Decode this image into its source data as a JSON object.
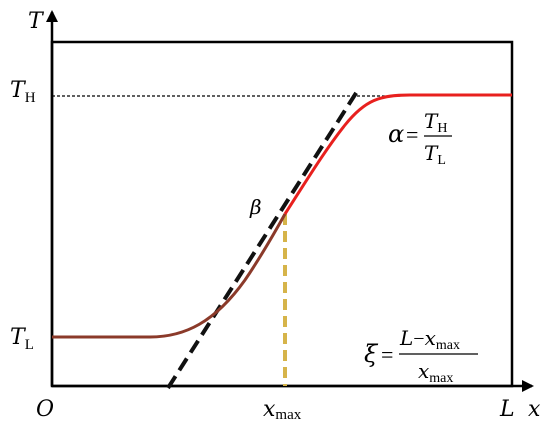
{
  "axes": {
    "y_label": "T",
    "x_label": "x",
    "origin_label": "O",
    "x_end_label": "L"
  },
  "levels": {
    "high": {
      "base": "T",
      "sub": "H"
    },
    "low": {
      "base": "T",
      "sub": "L"
    }
  },
  "x_max_label": {
    "base": "x",
    "sub": "max"
  },
  "angle_label": "β",
  "alpha_formula": {
    "lhs": "α",
    "eq": "=",
    "num": {
      "base": "T",
      "sub": "H"
    },
    "den": {
      "base": "T",
      "sub": "L"
    }
  },
  "xi_formula": {
    "lhs": "ξ",
    "eq": "=",
    "num": {
      "L": "L",
      "minus": "−",
      "x": "x",
      "sub": "max"
    },
    "den": {
      "base": "x",
      "sub": "max"
    }
  },
  "colors": {
    "curve": "#e8201e",
    "curve_shade": "#8b3a2a",
    "tangent": "#111111",
    "dropline": "#d6b44a",
    "frame": "#000000"
  }
}
